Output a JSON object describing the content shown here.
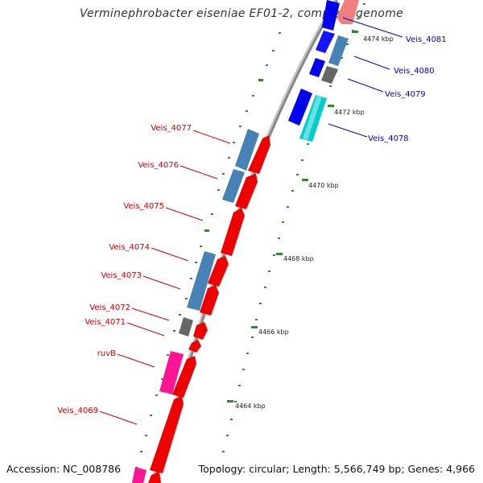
{
  "title": "Verminephrobacter eiseniae EF01-2, complete genome",
  "footer": {
    "accession": "Accession: NC_008786",
    "summary": "Topology: circular; Length: 5,566,749 bp; Genes: 4,966"
  },
  "colors": {
    "backbone": "#999999",
    "tick": "#2e8b2e",
    "forward_label": "#0000cc",
    "reverse_label": "#cc0000",
    "forward_gene": "#0000ee",
    "reverse_gene": "#ee0000",
    "cds_blue": "#4682b4",
    "cyan": "#00cccc",
    "grey": "#666666",
    "pink": "#ff1493",
    "salmon": "#f08080"
  },
  "ticks": [
    "4474 kbp",
    "4472 kbp",
    "4470 kbp",
    "4468 kbp",
    "4466 kbp",
    "4464 kbp"
  ],
  "labels_forward": [
    "Veis_4081",
    "Veis_4080",
    "Veis_4079",
    "Veis_4078"
  ],
  "labels_reverse": [
    "Veis_4077",
    "Veis_4076",
    "Veis_4075",
    "Veis_4074",
    "Veis_4073",
    "Veis_4072",
    "Veis_4071",
    "ruvB",
    "Veis_4069"
  ]
}
